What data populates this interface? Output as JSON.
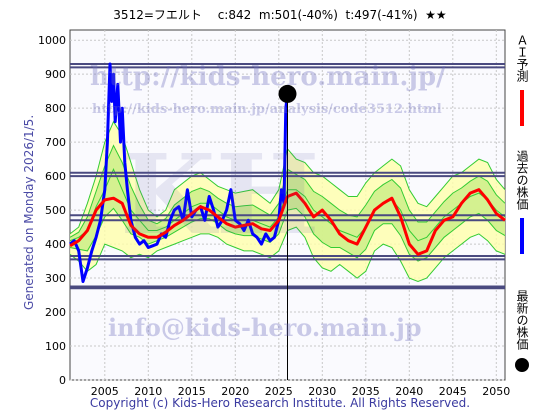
{
  "header": {
    "title": "3512=フエルト　 c:842  m:501(-40%)  t:497(-41%)  ★★"
  },
  "side_text": "Generated on Monday 2026/1/5.",
  "footer": "Copyright (c) Kids-Hero Research Institute. All Rights Reserved.",
  "watermarks": {
    "url_big": "http://kids-hero.main.jp/",
    "url_small": "http://kids-hero.main.jp/analysis/code3512.html",
    "email": "info@kids-hero.main.jp",
    "logo": "KH"
  },
  "legend": [
    {
      "label": "ＡＩ予測",
      "color": "#ff0000",
      "mark": "line"
    },
    {
      "label": "過去の株価",
      "color": "#0000ff",
      "mark": "line"
    },
    {
      "label": "最新の株価",
      "color": "#000000",
      "mark": "dot"
    }
  ],
  "colors": {
    "band_green": "#33cc33",
    "band_fill": "#ccee88",
    "band_yellow": "#ffffaa",
    "hline": "#4a4a80",
    "grid": "#c8c8c8"
  },
  "chart_data": {
    "type": "line",
    "xlim": [
      2001,
      2051
    ],
    "ylim": [
      0,
      1030
    ],
    "xticks": [
      2005,
      2010,
      2015,
      2020,
      2025,
      2030,
      2035,
      2040,
      2045,
      2050
    ],
    "yticks": [
      0,
      100,
      200,
      300,
      400,
      500,
      600,
      700,
      800,
      900,
      1000
    ],
    "hlines": [
      930,
      920,
      610,
      600,
      485,
      470,
      365,
      355,
      275,
      270
    ],
    "current_marker": {
      "x": 2026.0,
      "y": 842
    },
    "series": [
      {
        "name": "過去の株価",
        "color": "#0000ff",
        "x": [
          2001.0,
          2001.5,
          2002.0,
          2002.5,
          2003.0,
          2003.5,
          2004.0,
          2004.5,
          2005.0,
          2005.3,
          2005.6,
          2005.8,
          2006.0,
          2006.2,
          2006.5,
          2006.8,
          2007.0,
          2007.3,
          2007.6,
          2008.0,
          2008.5,
          2009.0,
          2009.5,
          2010.0,
          2010.5,
          2011.0,
          2011.5,
          2012.0,
          2012.5,
          2013.0,
          2013.5,
          2014.0,
          2014.5,
          2015.0,
          2015.5,
          2016.0,
          2016.5,
          2017.0,
          2017.5,
          2018.0,
          2018.5,
          2019.0,
          2019.5,
          2020.0,
          2020.5,
          2021.0,
          2021.5,
          2022.0,
          2022.5,
          2023.0,
          2023.5,
          2024.0,
          2024.5,
          2025.0,
          2025.3,
          2025.6,
          2025.8,
          2026.0
        ],
        "y": [
          400,
          410,
          380,
          290,
          330,
          380,
          420,
          470,
          560,
          700,
          930,
          820,
          900,
          760,
          870,
          700,
          800,
          640,
          560,
          470,
          420,
          400,
          410,
          390,
          395,
          400,
          430,
          420,
          470,
          500,
          510,
          470,
          560,
          480,
          500,
          510,
          470,
          540,
          500,
          450,
          470,
          500,
          560,
          470,
          460,
          440,
          470,
          430,
          420,
          400,
          430,
          410,
          420,
          470,
          560,
          520,
          800,
          842
        ]
      },
      {
        "name": "ＡＩ予測",
        "color": "#ff0000",
        "x": [
          2001,
          2002,
          2003,
          2004,
          2005,
          2006,
          2007,
          2008,
          2009,
          2010,
          2011,
          2012,
          2013,
          2014,
          2015,
          2016,
          2017,
          2018,
          2019,
          2020,
          2021,
          2022,
          2023,
          2024,
          2025,
          2026,
          2027,
          2028,
          2029,
          2030,
          2031,
          2032,
          2033,
          2034,
          2035,
          2036,
          2037,
          2038,
          2039,
          2040,
          2041,
          2042,
          2043,
          2044,
          2045,
          2046,
          2047,
          2048,
          2049,
          2050,
          2051
        ],
        "y": [
          395,
          410,
          440,
          500,
          530,
          535,
          520,
          455,
          430,
          420,
          420,
          435,
          455,
          470,
          490,
          510,
          500,
          480,
          460,
          450,
          455,
          460,
          445,
          440,
          470,
          540,
          550,
          520,
          480,
          500,
          470,
          430,
          410,
          400,
          450,
          500,
          520,
          535,
          480,
          400,
          370,
          380,
          440,
          470,
          480,
          520,
          550,
          560,
          530,
          490,
          470
        ]
      }
    ],
    "band_upper": [
      430,
      450,
      520,
      600,
      700,
      760,
      720,
      640,
      560,
      500,
      480,
      500,
      560,
      580,
      600,
      610,
      590,
      570,
      560,
      550,
      555,
      560,
      540,
      520,
      560,
      680,
      650,
      640,
      610,
      600,
      580,
      560,
      540,
      540,
      580,
      610,
      630,
      650,
      630,
      560,
      520,
      510,
      540,
      570,
      600,
      610,
      630,
      650,
      640,
      590,
      560
    ],
    "band_lower": [
      370,
      350,
      320,
      340,
      400,
      390,
      380,
      360,
      370,
      360,
      380,
      390,
      400,
      410,
      420,
      430,
      430,
      420,
      400,
      390,
      380,
      380,
      370,
      360,
      380,
      440,
      450,
      420,
      360,
      330,
      320,
      340,
      320,
      300,
      320,
      380,
      400,
      390,
      350,
      300,
      290,
      300,
      330,
      360,
      380,
      400,
      420,
      430,
      410,
      380,
      370
    ],
    "band_mid": [
      410,
      420,
      440,
      510,
      560,
      620,
      560,
      500,
      470,
      440,
      440,
      450,
      470,
      490,
      510,
      520,
      520,
      500,
      480,
      470,
      470,
      470,
      460,
      450,
      480,
      560,
      560,
      540,
      500,
      480,
      460,
      440,
      430,
      420,
      450,
      500,
      520,
      530,
      500,
      440,
      410,
      420,
      450,
      480,
      500,
      520,
      540,
      550,
      530,
      500,
      480
    ]
  }
}
